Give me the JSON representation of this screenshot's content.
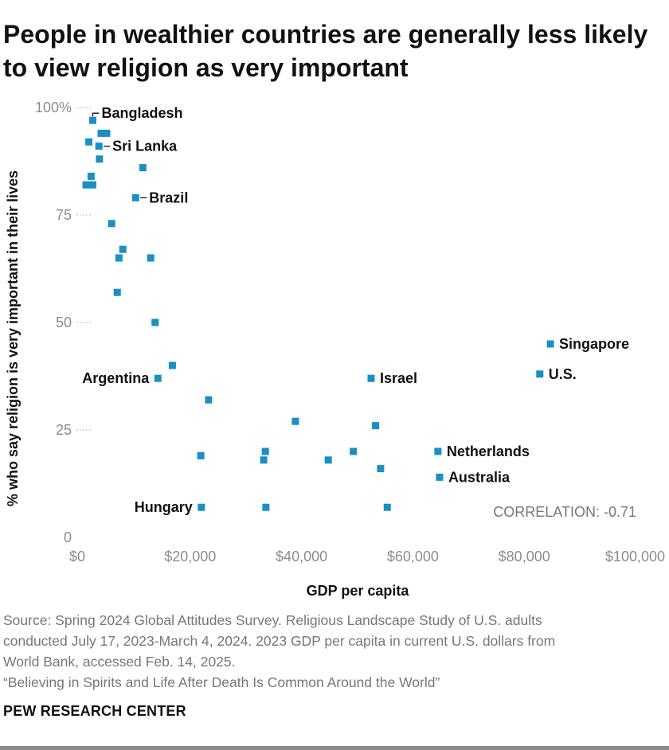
{
  "title": "People in wealthier countries are generally less likely to view religion as very important",
  "source_lines": [
    "Source: Spring 2024 Global Attitudes Survey. Religious Landscape Study of U.S. adults",
    "conducted July 17, 2023-March 4, 2024. 2023 GDP per capita in current U.S. dollars from",
    "World Bank, accessed Feb. 14, 2025.",
    "“Believing in Spirits and Life After Death Is Common Around the World”"
  ],
  "brand": "PEW RESEARCH CENTER",
  "colors": {
    "point": "#1a8fc3",
    "axis_text": "#8c8c8c",
    "label": "#111111",
    "tick_dots": "#b5b5b5"
  },
  "chart_data": {
    "type": "scatter",
    "xlabel": "GDP per capita",
    "ylabel": "% who say religion is very important in their lives",
    "xlim": [
      0,
      100000
    ],
    "ylim": [
      0,
      100
    ],
    "xticks": [
      0,
      20000,
      40000,
      60000,
      80000,
      100000
    ],
    "xtick_labels": [
      "$0",
      "$20,000",
      "$40,000",
      "$60,000",
      "$80,000",
      "$100,000"
    ],
    "yticks": [
      0,
      25,
      50,
      75,
      100
    ],
    "ytick_labels": [
      "0",
      "25",
      "50",
      "75",
      "100%"
    ],
    "grid": false,
    "annotation": "CORRELATION: -0.71",
    "points": [
      {
        "x": 2500,
        "y": 97,
        "label": "Bangladesh",
        "side": "right",
        "leader": "elbow"
      },
      {
        "x": 4000,
        "y": 94
      },
      {
        "x": 5000,
        "y": 94
      },
      {
        "x": 1800,
        "y": 92
      },
      {
        "x": 3600,
        "y": 91,
        "label": "Sri Lanka",
        "side": "right",
        "leader": "short"
      },
      {
        "x": 3700,
        "y": 88
      },
      {
        "x": 11500,
        "y": 86
      },
      {
        "x": 2200,
        "y": 84
      },
      {
        "x": 1300,
        "y": 82
      },
      {
        "x": 2500,
        "y": 82
      },
      {
        "x": 10200,
        "y": 79,
        "label": "Brazil",
        "side": "right",
        "leader": "short"
      },
      {
        "x": 5900,
        "y": 73
      },
      {
        "x": 7900,
        "y": 67
      },
      {
        "x": 7200,
        "y": 65
      },
      {
        "x": 12900,
        "y": 65
      },
      {
        "x": 6900,
        "y": 57
      },
      {
        "x": 13700,
        "y": 50
      },
      {
        "x": 16800,
        "y": 40
      },
      {
        "x": 14200,
        "y": 37,
        "label": "Argentina",
        "side": "left"
      },
      {
        "x": 23300,
        "y": 32
      },
      {
        "x": 38900,
        "y": 27
      },
      {
        "x": 53300,
        "y": 26
      },
      {
        "x": 33500,
        "y": 20
      },
      {
        "x": 49300,
        "y": 20
      },
      {
        "x": 21900,
        "y": 19
      },
      {
        "x": 33200,
        "y": 18
      },
      {
        "x": 44800,
        "y": 18
      },
      {
        "x": 54200,
        "y": 16
      },
      {
        "x": 22000,
        "y": 7,
        "label": "Hungary",
        "side": "left"
      },
      {
        "x": 33600,
        "y": 7
      },
      {
        "x": 55400,
        "y": 7
      },
      {
        "x": 52500,
        "y": 37,
        "label": "Israel",
        "side": "right"
      },
      {
        "x": 84700,
        "y": 45,
        "label": "Singapore",
        "side": "right"
      },
      {
        "x": 82800,
        "y": 38,
        "label": "U.S.",
        "side": "right"
      },
      {
        "x": 64500,
        "y": 20,
        "label": "Netherlands",
        "side": "right"
      },
      {
        "x": 64800,
        "y": 14,
        "label": "Australia",
        "side": "right"
      }
    ]
  }
}
